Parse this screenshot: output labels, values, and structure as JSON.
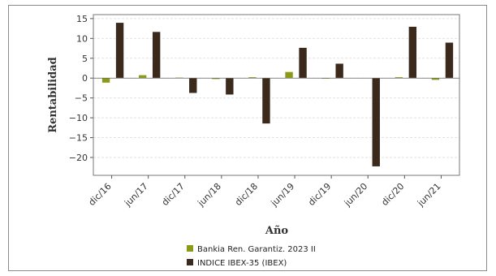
{
  "chart_data": {
    "type": "bar",
    "categories": [
      "dic/16",
      "jun/17",
      "dic/17",
      "jun/18",
      "dic/18",
      "jun/19",
      "dic/19",
      "jun/20",
      "dic/20",
      "jun/21"
    ],
    "series": [
      {
        "name": "Bankia Ren. Garantiz. 2023 II",
        "color": "#8a9a14",
        "values": [
          -1.2,
          0.8,
          0.2,
          -0.3,
          0.3,
          1.6,
          -0.2,
          0.0,
          0.3,
          -0.5
        ]
      },
      {
        "name": "INDICE IBEX-35 (IBEX)",
        "color": "#3b2a1c",
        "values": [
          14.0,
          11.7,
          -3.8,
          -4.2,
          -11.5,
          7.7,
          3.7,
          -22.3,
          13.0,
          9.0
        ]
      }
    ],
    "xlabel": "Año",
    "ylabel": "Rentabilidad",
    "ylim": [
      -24.5,
      16
    ],
    "yticks": [
      15,
      10,
      5,
      0,
      -5,
      -10,
      -15,
      -20
    ],
    "ytick_labels": [
      "15",
      "10",
      "5",
      "0",
      "−5",
      "−10",
      "−15",
      "−20"
    ],
    "grid": true,
    "legend_position": "bottom"
  }
}
